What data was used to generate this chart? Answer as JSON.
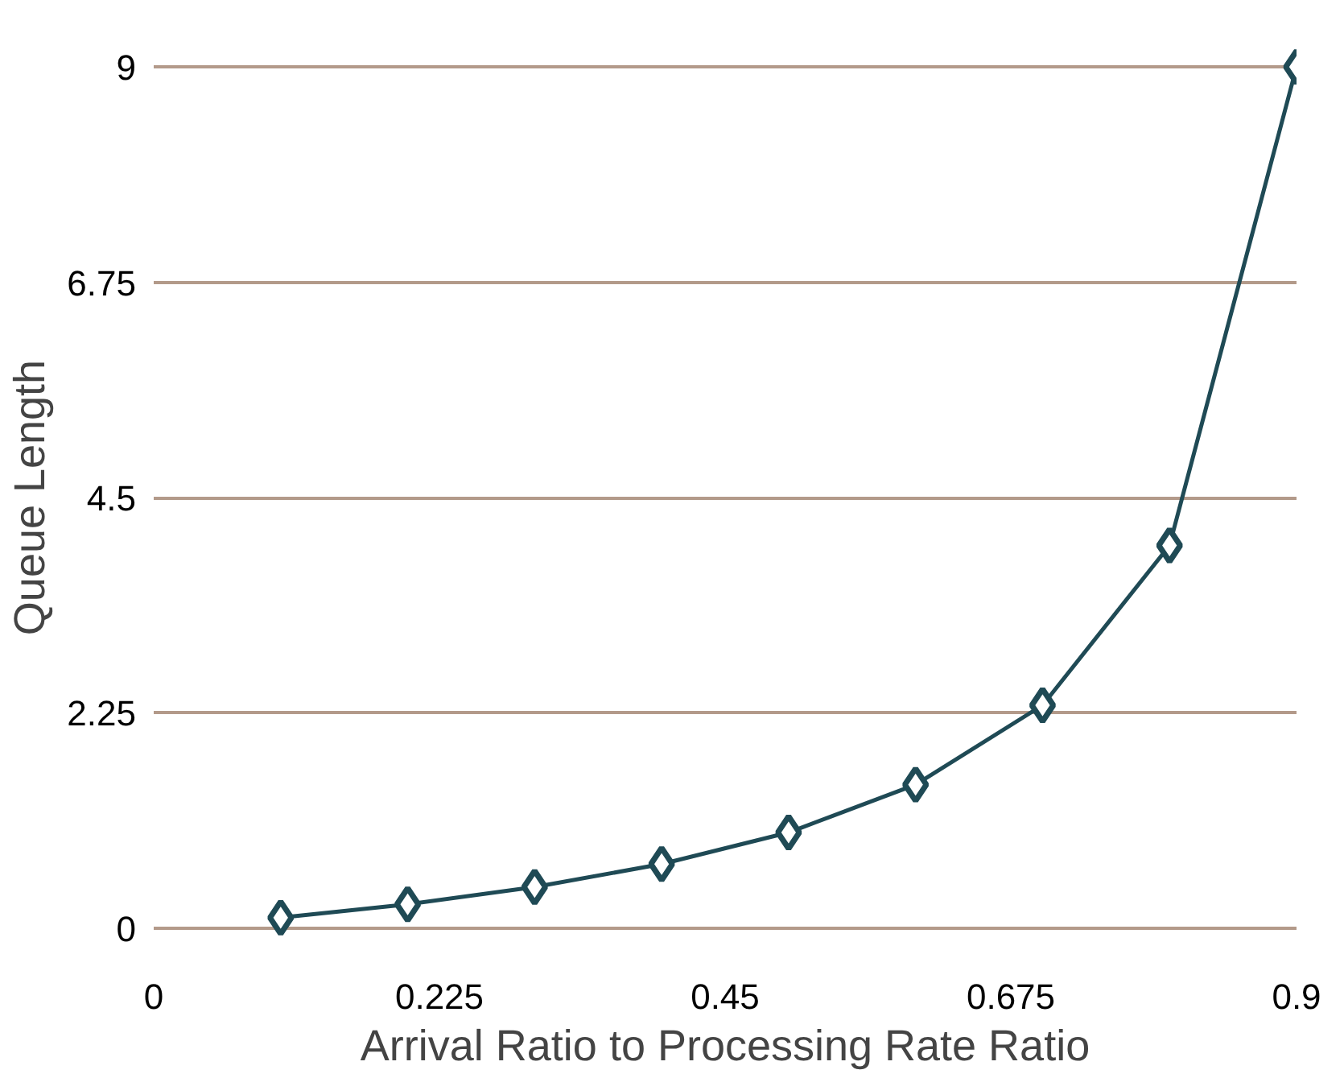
{
  "chart_data": {
    "type": "line",
    "xlabel": "Arrival Ratio to Processing Rate Ratio",
    "ylabel": "Queue Length",
    "x": [
      0.1,
      0.2,
      0.3,
      0.4,
      0.5,
      0.6,
      0.7,
      0.8,
      0.9
    ],
    "series": [
      {
        "color": "#1f4a55",
        "values": [
          0.11,
          0.25,
          0.43,
          0.67,
          1.0,
          1.5,
          2.33,
          4.0,
          9.0
        ]
      }
    ],
    "xlim": [
      0,
      0.9
    ],
    "xticks": [
      0,
      0.225,
      0.45,
      0.675,
      0.9
    ],
    "ylim": [
      0,
      9
    ],
    "yticks": [
      0,
      2.25,
      4.5,
      6.75,
      9
    ],
    "grid": "y",
    "marker": "diamond",
    "line_style": "solid"
  }
}
